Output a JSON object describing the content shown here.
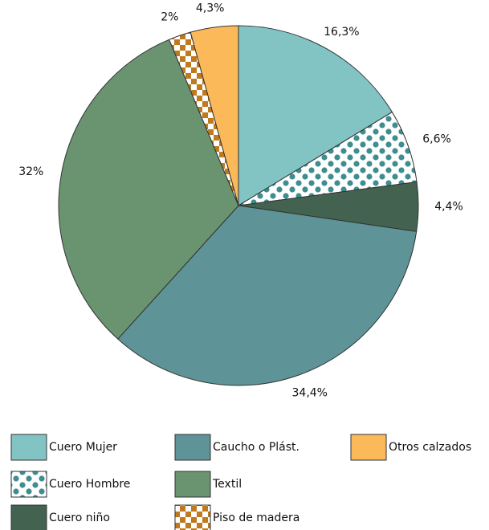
{
  "chart_data": {
    "type": "pie",
    "categories": [
      "Cuero Mujer",
      "Cuero Hombre",
      "Cuero niño",
      "Caucho o Plást.",
      "Textil",
      "Piso de madera",
      "Otros calzados"
    ],
    "values": [
      16.3,
      6.6,
      4.4,
      34.4,
      32,
      2,
      4.3
    ],
    "value_labels": [
      "16,3%",
      "6,6%",
      "4,4%",
      "34,4%",
      "32%",
      "2%",
      "4,3%"
    ],
    "colors": [
      "#82c4c3",
      "#3f8d8f",
      "#436350",
      "#5e9497",
      "#6a9470",
      "#c07a1e",
      "#fbb95a"
    ],
    "patterns": [
      null,
      "dots",
      null,
      null,
      null,
      "checker",
      null
    ],
    "legend": "bottom"
  }
}
